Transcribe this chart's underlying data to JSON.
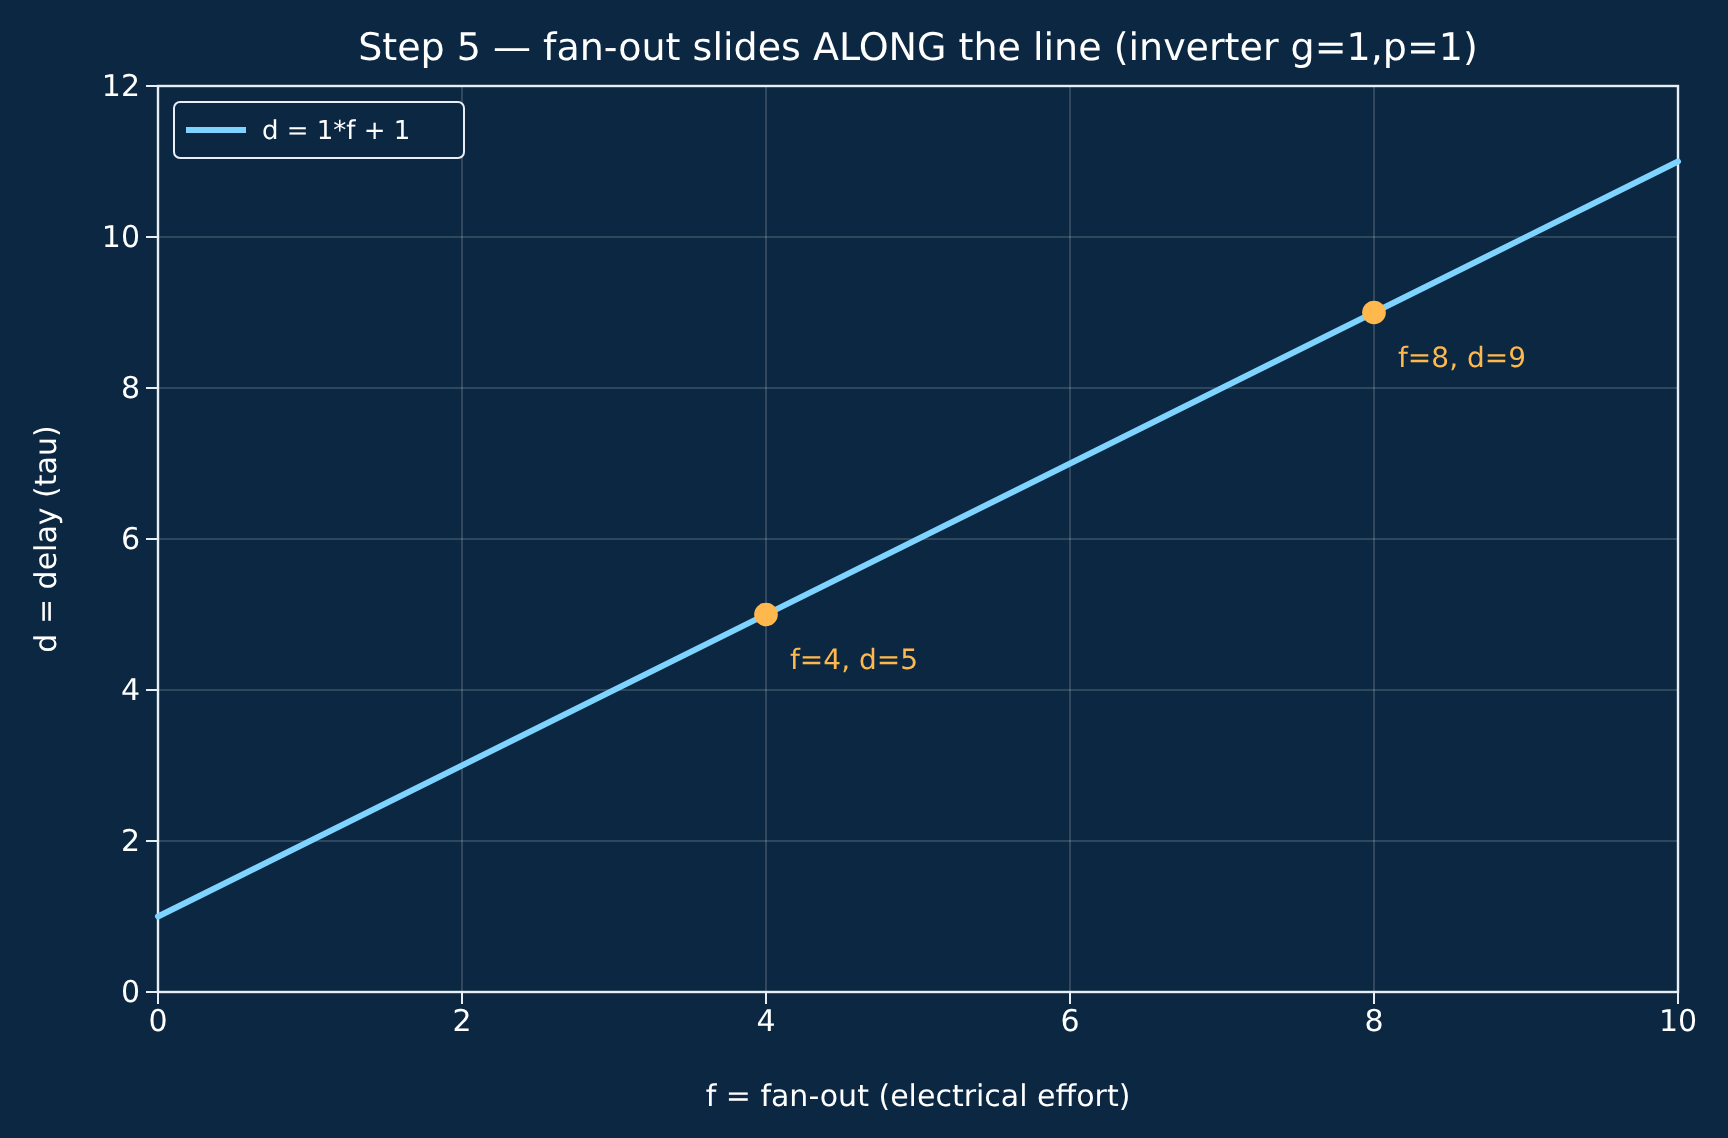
{
  "chart_data": {
    "type": "line",
    "title": "Step 5 — fan-out slides ALONG the line (inverter g=1,p=1)",
    "xlabel": "f = fan-out (electrical effort)",
    "ylabel": "d = delay (tau)",
    "xlim": [
      0,
      10
    ],
    "ylim": [
      0,
      12
    ],
    "xticks": [
      0,
      2,
      4,
      6,
      8,
      10
    ],
    "yticks": [
      0,
      2,
      4,
      6,
      8,
      10,
      12
    ],
    "grid": true,
    "legend": "top left",
    "series": [
      {
        "name": "d = 1*f + 1",
        "color": "#7fd4ff",
        "x": [
          0,
          10
        ],
        "values": [
          1,
          11
        ],
        "line_style": "solid"
      },
      {
        "type": "scatter",
        "color": "#ffb84d",
        "x": [
          4,
          8
        ],
        "values": [
          5,
          9
        ],
        "marker": "circle"
      }
    ],
    "annotations": [
      {
        "text": "f=4, d=5",
        "x": 4,
        "y": 5
      },
      {
        "text": "f=8, d=9",
        "x": 8,
        "y": 9
      }
    ]
  }
}
